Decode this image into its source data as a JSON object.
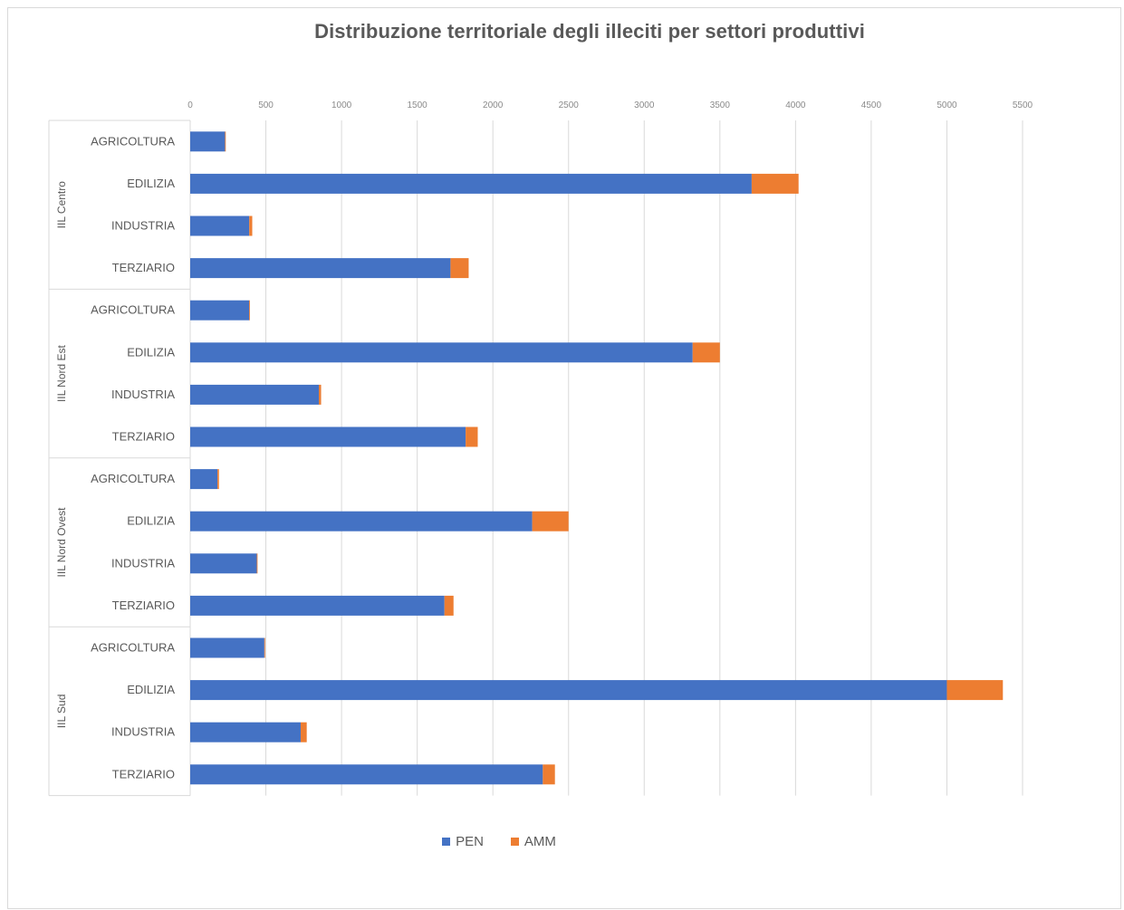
{
  "chart_data": {
    "type": "bar",
    "orientation": "horizontal",
    "stacked": true,
    "title": "Distribuzione territoriale degli illeciti per settori produttivi",
    "xlim": [
      0,
      5500
    ],
    "x_ticks": [
      "0",
      "500",
      "1000",
      "1500",
      "2000",
      "2500",
      "3000",
      "3500",
      "4000",
      "4500",
      "5000",
      "5500"
    ],
    "grid": "vertical",
    "legend_position": "bottom",
    "groups": [
      {
        "name": "IIL Centro",
        "categories": [
          "AGRICOLTURA",
          "EDILIZIA",
          "INDUSTRIA",
          "TERZIARIO"
        ]
      },
      {
        "name": "IIL Nord Est",
        "categories": [
          "AGRICOLTURA",
          "EDILIZIA",
          "INDUSTRIA",
          "TERZIARIO"
        ]
      },
      {
        "name": "IIL Nord Ovest",
        "categories": [
          "AGRICOLTURA",
          "EDILIZIA",
          "INDUSTRIA",
          "TERZIARIO"
        ]
      },
      {
        "name": "IIL Sud",
        "categories": [
          "AGRICOLTURA",
          "EDILIZIA",
          "INDUSTRIA",
          "TERZIARIO"
        ]
      }
    ],
    "series": [
      {
        "name": "PEN",
        "color": "#4472c4",
        "values": [
          230,
          3710,
          390,
          1720,
          390,
          3320,
          850,
          1820,
          180,
          2260,
          440,
          1680,
          490,
          5000,
          730,
          2330
        ]
      },
      {
        "name": "AMM",
        "color": "#ed7d31",
        "values": [
          5,
          310,
          20,
          120,
          5,
          180,
          15,
          80,
          10,
          240,
          5,
          60,
          5,
          370,
          40,
          80
        ]
      }
    ]
  }
}
